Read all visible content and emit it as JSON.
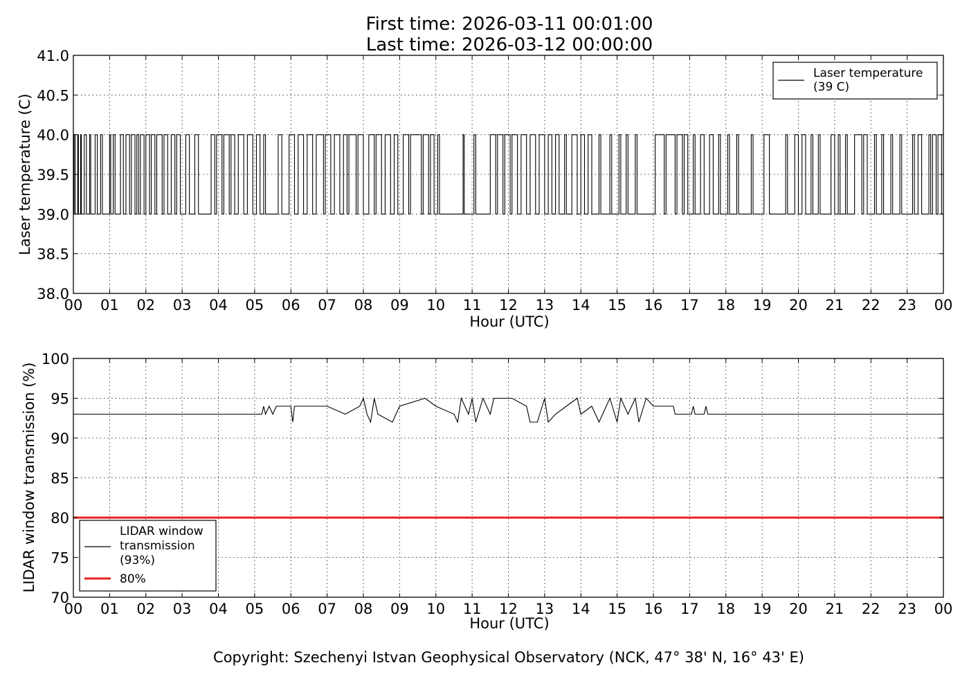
{
  "title": {
    "line1": "First time: 2026-03-11 00:01:00",
    "line2": "Last time: 2026-03-12 00:00:00"
  },
  "copyright": "Copyright: Szechenyi Istvan Geophysical Observatory (NCK, 47° 38' N, 16° 43' E)",
  "chart_data": [
    {
      "type": "line",
      "xlabel": "Hour (UTC)",
      "ylabel": "Laser temperature (C)",
      "xlim": [
        0,
        24
      ],
      "ylim": [
        38.0,
        41.0
      ],
      "x_ticks": [
        "00",
        "01",
        "02",
        "03",
        "04",
        "05",
        "06",
        "07",
        "08",
        "09",
        "10",
        "11",
        "12",
        "13",
        "14",
        "15",
        "16",
        "17",
        "18",
        "19",
        "20",
        "21",
        "22",
        "23",
        "00"
      ],
      "y_ticks": [
        "38.0",
        "38.5",
        "39.0",
        "39.5",
        "40.0",
        "40.5",
        "41.0"
      ],
      "grid": true,
      "legend_position": "top-right",
      "series": [
        {
          "name": "Laser temperature\n(39 C)",
          "color": "#000000",
          "description": "Step signal alternating between 39.0 and 40.0",
          "baseline": 39.0,
          "high": 40.0,
          "x_unit": "hour",
          "high_intervals": [
            [
              0.02,
              0.05
            ],
            [
              0.12,
              0.14
            ],
            [
              0.2,
              0.22
            ],
            [
              0.3,
              0.36
            ],
            [
              0.45,
              0.48
            ],
            [
              0.6,
              0.66
            ],
            [
              0.75,
              0.8
            ],
            [
              1.0,
              1.03
            ],
            [
              1.1,
              1.15
            ],
            [
              1.3,
              1.38
            ],
            [
              1.45,
              1.55
            ],
            [
              1.6,
              1.7
            ],
            [
              1.75,
              1.8
            ],
            [
              1.85,
              1.95
            ],
            [
              2.0,
              2.1
            ],
            [
              2.15,
              2.25
            ],
            [
              2.3,
              2.45
            ],
            [
              2.5,
              2.6
            ],
            [
              2.7,
              2.8
            ],
            [
              2.85,
              2.95
            ],
            [
              3.1,
              3.2
            ],
            [
              3.35,
              3.45
            ],
            [
              3.8,
              3.9
            ],
            [
              3.95,
              4.1
            ],
            [
              4.15,
              4.3
            ],
            [
              4.35,
              4.45
            ],
            [
              4.55,
              4.7
            ],
            [
              4.8,
              4.95
            ],
            [
              5.05,
              5.15
            ],
            [
              5.25,
              5.3
            ],
            [
              5.65,
              5.75
            ],
            [
              5.95,
              6.1
            ],
            [
              6.2,
              6.35
            ],
            [
              6.45,
              6.6
            ],
            [
              6.7,
              6.9
            ],
            [
              6.95,
              7.1
            ],
            [
              7.2,
              7.35
            ],
            [
              7.45,
              7.55
            ],
            [
              7.6,
              7.8
            ],
            [
              7.85,
              8.0
            ],
            [
              8.15,
              8.3
            ],
            [
              8.35,
              8.5
            ],
            [
              8.6,
              8.75
            ],
            [
              8.85,
              8.95
            ],
            [
              9.1,
              9.25
            ],
            [
              9.3,
              9.6
            ],
            [
              9.65,
              9.8
            ],
            [
              9.85,
              9.95
            ],
            [
              10.05,
              10.1
            ],
            [
              10.75,
              10.78
            ],
            [
              11.05,
              11.1
            ],
            [
              11.5,
              11.65
            ],
            [
              11.7,
              11.85
            ],
            [
              11.9,
              12.05
            ],
            [
              12.1,
              12.25
            ],
            [
              12.35,
              12.5
            ],
            [
              12.6,
              12.75
            ],
            [
              12.85,
              13.0
            ],
            [
              13.1,
              13.2
            ],
            [
              13.3,
              13.4
            ],
            [
              13.55,
              13.6
            ],
            [
              13.75,
              13.9
            ],
            [
              14.0,
              14.1
            ],
            [
              14.2,
              14.3
            ],
            [
              14.5,
              14.55
            ],
            [
              14.8,
              14.85
            ],
            [
              15.05,
              15.1
            ],
            [
              15.25,
              15.3
            ],
            [
              15.5,
              15.55
            ],
            [
              16.05,
              16.3
            ],
            [
              16.35,
              16.6
            ],
            [
              16.65,
              16.8
            ],
            [
              16.85,
              16.95
            ],
            [
              17.1,
              17.15
            ],
            [
              17.3,
              17.4
            ],
            [
              17.55,
              17.65
            ],
            [
              17.8,
              17.85
            ],
            [
              18.05,
              18.1
            ],
            [
              18.3,
              18.35
            ],
            [
              18.7,
              18.75
            ],
            [
              19.05,
              19.2
            ],
            [
              19.65,
              19.7
            ],
            [
              19.9,
              20.0
            ],
            [
              20.1,
              20.2
            ],
            [
              20.35,
              20.4
            ],
            [
              20.55,
              20.6
            ],
            [
              20.9,
              21.0
            ],
            [
              21.1,
              21.15
            ],
            [
              21.3,
              21.35
            ],
            [
              21.55,
              21.75
            ],
            [
              21.8,
              21.9
            ],
            [
              22.1,
              22.15
            ],
            [
              22.3,
              22.35
            ],
            [
              22.55,
              22.6
            ],
            [
              22.8,
              22.85
            ],
            [
              23.15,
              23.2
            ],
            [
              23.3,
              23.4
            ],
            [
              23.6,
              23.65
            ],
            [
              23.7,
              23.8
            ],
            [
              23.85,
              23.95
            ]
          ]
        }
      ]
    },
    {
      "type": "line",
      "xlabel": "Hour (UTC)",
      "ylabel": "LIDAR window transmission (%)",
      "xlim": [
        0,
        24
      ],
      "ylim": [
        70,
        100
      ],
      "x_ticks": [
        "00",
        "01",
        "02",
        "03",
        "04",
        "05",
        "06",
        "07",
        "08",
        "09",
        "10",
        "11",
        "12",
        "13",
        "14",
        "15",
        "16",
        "17",
        "18",
        "19",
        "20",
        "21",
        "22",
        "23",
        "00"
      ],
      "y_ticks": [
        "70",
        "75",
        "80",
        "85",
        "90",
        "95",
        "100"
      ],
      "grid": true,
      "legend_position": "bottom-left",
      "series": [
        {
          "name": "LIDAR window\ntransmission\n(93%)",
          "color": "#000000",
          "description": "Baseline 93%, fluctuating 92-95 between 05:15 and 16:35, with spikes at 17:05 and 17:25",
          "baseline": 93,
          "active_range": [
            5.2,
            16.6
          ],
          "x_unit": "hour",
          "points": [
            [
              0,
              93
            ],
            [
              5.2,
              93
            ],
            [
              5.25,
              94
            ],
            [
              5.3,
              93
            ],
            [
              5.4,
              94
            ],
            [
              5.5,
              93
            ],
            [
              5.6,
              94
            ],
            [
              6.0,
              94
            ],
            [
              6.05,
              92
            ],
            [
              6.1,
              94
            ],
            [
              7.0,
              94
            ],
            [
              7.5,
              93
            ],
            [
              7.9,
              94
            ],
            [
              8.0,
              95
            ],
            [
              8.1,
              93
            ],
            [
              8.2,
              92
            ],
            [
              8.3,
              95
            ],
            [
              8.4,
              93
            ],
            [
              8.8,
              92
            ],
            [
              9.0,
              94
            ],
            [
              9.7,
              95
            ],
            [
              10.0,
              94
            ],
            [
              10.5,
              93
            ],
            [
              10.6,
              92
            ],
            [
              10.7,
              95
            ],
            [
              10.9,
              93
            ],
            [
              11.0,
              95
            ],
            [
              11.1,
              92
            ],
            [
              11.3,
              95
            ],
            [
              11.5,
              93
            ],
            [
              11.6,
              95
            ],
            [
              12.1,
              95
            ],
            [
              12.5,
              94
            ],
            [
              12.6,
              92
            ],
            [
              12.8,
              92
            ],
            [
              13.0,
              95
            ],
            [
              13.1,
              92
            ],
            [
              13.3,
              93
            ],
            [
              13.9,
              95
            ],
            [
              14.0,
              93
            ],
            [
              14.3,
              94
            ],
            [
              14.5,
              92
            ],
            [
              14.8,
              95
            ],
            [
              15.0,
              92
            ],
            [
              15.1,
              95
            ],
            [
              15.3,
              93
            ],
            [
              15.5,
              95
            ],
            [
              15.6,
              92
            ],
            [
              15.8,
              95
            ],
            [
              16.0,
              94
            ],
            [
              16.55,
              94
            ],
            [
              16.6,
              93
            ],
            [
              17.05,
              93
            ],
            [
              17.1,
              94
            ],
            [
              17.15,
              93
            ],
            [
              17.4,
              93
            ],
            [
              17.45,
              94
            ],
            [
              17.5,
              93
            ],
            [
              24,
              93
            ]
          ]
        },
        {
          "name": "80%",
          "color": "#e8221a",
          "constant": 80
        }
      ]
    }
  ]
}
